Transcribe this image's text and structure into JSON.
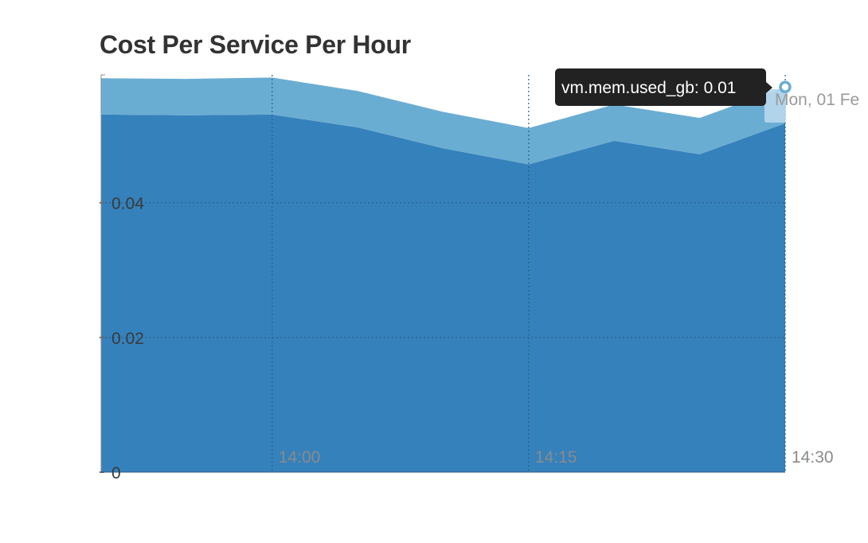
{
  "chart_data": {
    "type": "area",
    "stacked": true,
    "title": "Cost Per Service Per Hour",
    "xlabel": "",
    "ylabel": "",
    "x_unit": "time (Mon, 01 Feb)",
    "x": [
      "13:50",
      "13:55",
      "14:00",
      "14:05",
      "14:10",
      "14:15",
      "14:20",
      "14:25",
      "14:30"
    ],
    "x_ticks": [
      "14:00",
      "14:15",
      "14:30"
    ],
    "y_ticks": [
      "0",
      "0.02",
      "0.04"
    ],
    "ylim": [
      0,
      0.059
    ],
    "grid": true,
    "legend": "none",
    "series": [
      {
        "name": "",
        "color": "#3581bb",
        "values": [
          0.0531,
          0.053,
          0.0531,
          0.0512,
          0.0481,
          0.0457,
          0.0492,
          0.0472,
          0.0518
        ]
      },
      {
        "name": "vm.mem.used_gb",
        "color": "#6aadd3",
        "values": [
          0.0054,
          0.0054,
          0.0055,
          0.0054,
          0.0054,
          0.0054,
          0.0054,
          0.0054,
          0.0054
        ]
      }
    ],
    "tooltip": {
      "text": "vm.mem.used_gb: 0.01",
      "at_x": "14:30"
    },
    "hover_time_label": "Mon, 01 Fe"
  }
}
